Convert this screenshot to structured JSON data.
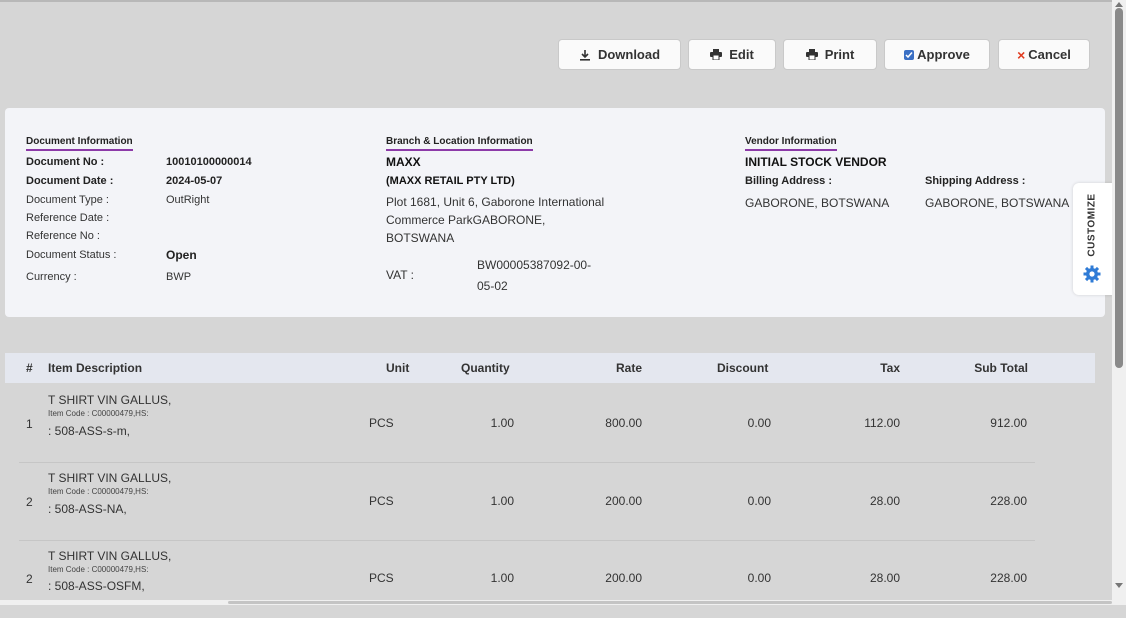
{
  "toolbar": {
    "download": "Download",
    "edit": "Edit",
    "print": "Print",
    "approve": "Approve",
    "cancel": "Cancel"
  },
  "document_info": {
    "title": "Document Information",
    "doc_no_label": "Document No :",
    "doc_no": "10010100000014",
    "doc_date_label": "Document Date :",
    "doc_date": "2024-05-07",
    "doc_type_label": "Document Type :",
    "doc_type": "OutRight",
    "ref_date_label": "Reference Date :",
    "ref_no_label": "Reference No :",
    "status_label": "Document Status :",
    "status": "Open",
    "currency_label": "Currency :",
    "currency": "BWP"
  },
  "branch_info": {
    "title": "Branch & Location Information",
    "name": "MAXX",
    "company": "(MAXX RETAIL PTY LTD)",
    "address_1": "Plot 1681, Unit 6, Gaborone International",
    "address_2": "Commerce ParkGABORONE,",
    "address_3": "BOTSWANA",
    "vat_label": "VAT :",
    "vat_1": "BW00005387092-00-",
    "vat_2": "05-02"
  },
  "vendor_info": {
    "title": "Vendor Information",
    "name": "INITIAL STOCK VENDOR",
    "billing_label": "Billing Address :",
    "billing": "GABORONE, BOTSWANA",
    "shipping_label": "Shipping Address :",
    "shipping": "GABORONE, BOTSWANA"
  },
  "customize": {
    "label": "CUSTOMIZE"
  },
  "table": {
    "headers": {
      "num": "#",
      "desc": "Item Description",
      "unit": "Unit",
      "qty": "Quantity",
      "rate": "Rate",
      "discount": "Discount",
      "tax": "Tax",
      "subtotal": "Sub Total"
    },
    "rows": [
      {
        "num": "1",
        "desc": "T SHIRT VIN GALLUS,",
        "code": "Item Code : C00000479,HS:",
        "sku": ": 508-ASS-s-m,",
        "unit": "PCS",
        "qty": "1.00",
        "rate": "800.00",
        "discount": "0.00",
        "tax": "112.00",
        "subtotal": "912.00"
      },
      {
        "num": "2",
        "desc": "T SHIRT VIN GALLUS,",
        "code": "Item Code : C00000479,HS:",
        "sku": ": 508-ASS-NA,",
        "unit": "PCS",
        "qty": "1.00",
        "rate": "200.00",
        "discount": "0.00",
        "tax": "28.00",
        "subtotal": "228.00"
      },
      {
        "num": "2",
        "desc": "T SHIRT VIN GALLUS,",
        "code": "Item Code : C00000479,HS:",
        "sku": ": 508-ASS-OSFM,",
        "unit": "PCS",
        "qty": "1.00",
        "rate": "200.00",
        "discount": "0.00",
        "tax": "28.00",
        "subtotal": "228.00"
      }
    ]
  },
  "colors": {
    "background": "#d6d6d6",
    "card": "#f3f4f8",
    "section_underline": "#8c3aa8",
    "approve_check": "#3a6fc4",
    "cancel_x": "#e03a1e",
    "customize_gear": "#2f7bd6"
  }
}
